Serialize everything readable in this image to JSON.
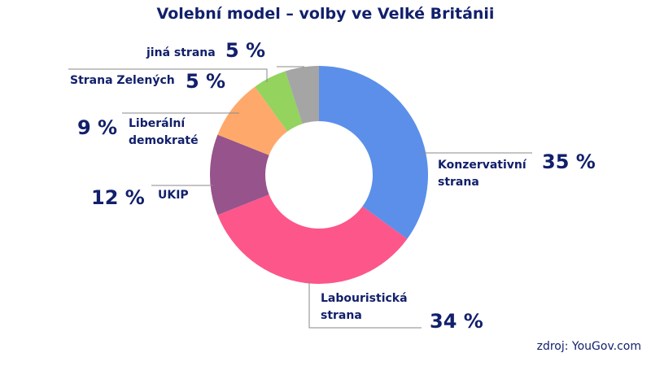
{
  "chart_data": {
    "type": "pie",
    "style": "donut",
    "title": "Volební model – volby ve Velké Británii",
    "source": "zdroj: YouGov.com",
    "slices": [
      {
        "label_lines": [
          "Konzervativní",
          "strana"
        ],
        "value": 35,
        "value_text": "35 %",
        "color": "#5b8fea"
      },
      {
        "label_lines": [
          "Labouristická",
          "strana"
        ],
        "value": 34,
        "value_text": "34 %",
        "color": "#fc568a"
      },
      {
        "label_lines": [
          "UKIP"
        ],
        "value": 12,
        "value_text": "12 %",
        "color": "#97538b"
      },
      {
        "label_lines": [
          "Liberální",
          "demokraté"
        ],
        "value": 9,
        "value_text": "9 %",
        "color": "#fea96b"
      },
      {
        "label_lines": [
          "Strana Zelených"
        ],
        "value": 5,
        "value_text": "5 %",
        "color": "#93d35e"
      },
      {
        "label_lines": [
          "jiná strana"
        ],
        "value": 5,
        "value_text": "5 %",
        "color": "#a5a5a5"
      }
    ]
  }
}
